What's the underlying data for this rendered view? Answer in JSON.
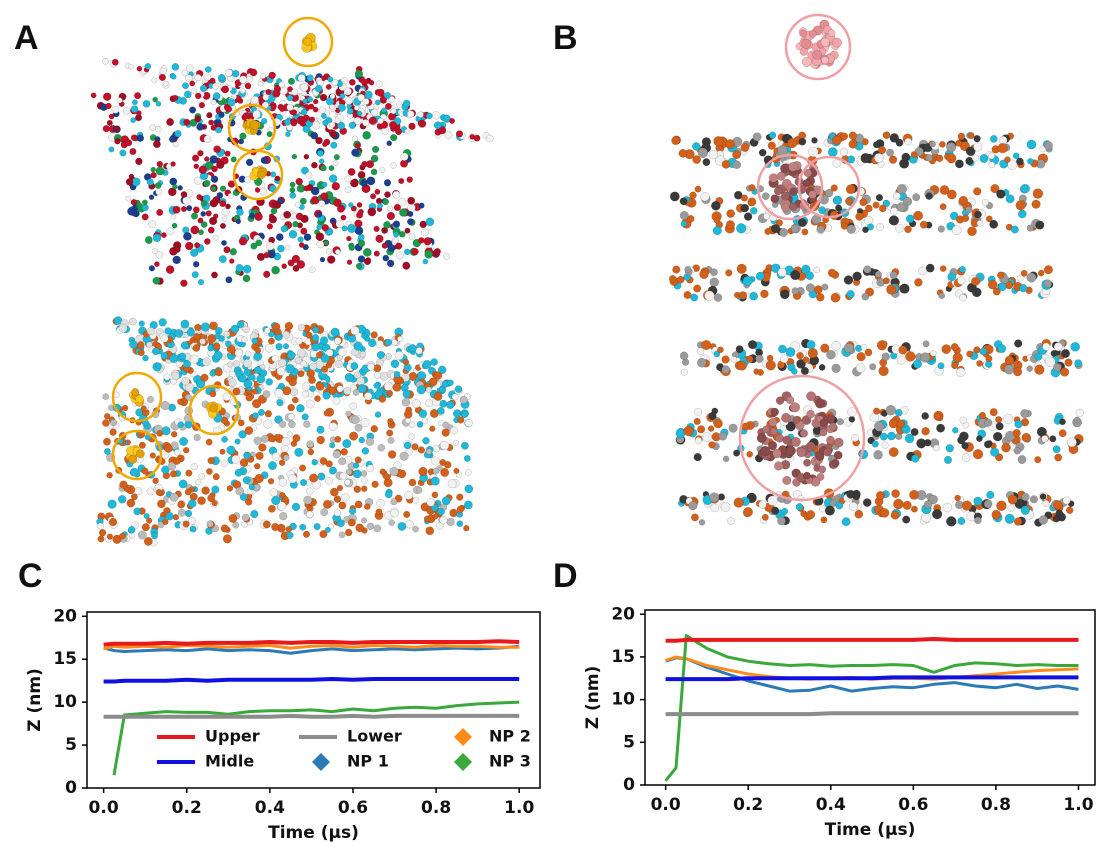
{
  "panel_labels": [
    "A",
    "B",
    "C",
    "D"
  ],
  "chart_data": [
    {
      "type": "line",
      "xlabel": "Time (µs)",
      "ylabel": "Z (nm)",
      "xlim": [
        -0.04,
        1.05
      ],
      "ylim": [
        0,
        20.5
      ],
      "xticks": [
        {
          "value": 0,
          "label": "0.0"
        },
        0.2,
        0.4,
        0.6,
        0.8,
        {
          "value": 1,
          "label": "1.0"
        }
      ],
      "yticks": [
        0,
        5,
        10,
        15,
        20
      ],
      "legend": true,
      "x": [
        0,
        0.025,
        0.05,
        0.1,
        0.15,
        0.2,
        0.25,
        0.3,
        0.35,
        0.4,
        0.45,
        0.5,
        0.55,
        0.6,
        0.65,
        0.7,
        0.75,
        0.8,
        0.85,
        0.9,
        0.95,
        1.0
      ],
      "series": [
        {
          "name": "Upper",
          "color": "#e8191c",
          "marker": "line",
          "values": [
            16.7,
            16.8,
            16.8,
            16.8,
            16.9,
            16.8,
            16.9,
            16.9,
            16.9,
            17.0,
            16.9,
            17.0,
            17.0,
            16.9,
            17.0,
            17.0,
            17.0,
            17.0,
            17.0,
            17.0,
            17.1,
            17.0
          ]
        },
        {
          "name": "Midle",
          "color": "#1010e0",
          "marker": "line",
          "values": [
            12.4,
            12.4,
            12.5,
            12.5,
            12.5,
            12.6,
            12.5,
            12.6,
            12.6,
            12.6,
            12.6,
            12.6,
            12.7,
            12.6,
            12.7,
            12.7,
            12.7,
            12.7,
            12.7,
            12.7,
            12.7,
            12.7
          ]
        },
        {
          "name": "Lower",
          "color": "#8c8c8c",
          "marker": "line",
          "values": [
            8.3,
            8.3,
            8.3,
            8.3,
            8.3,
            8.3,
            8.3,
            8.3,
            8.3,
            8.3,
            8.4,
            8.3,
            8.3,
            8.4,
            8.3,
            8.4,
            8.4,
            8.4,
            8.4,
            8.4,
            8.4,
            8.4
          ]
        },
        {
          "name": "NP 1",
          "color": "#2c7bb6",
          "marker": "diamond",
          "values": [
            16.3,
            16.0,
            15.9,
            16.0,
            16.1,
            16.0,
            16.2,
            16.0,
            16.1,
            16.0,
            15.7,
            16.0,
            16.2,
            16.0,
            16.1,
            16.2,
            16.1,
            16.2,
            16.3,
            16.2,
            16.3,
            16.5
          ]
        },
        {
          "name": "NP 2",
          "color": "#ff8c1a",
          "marker": "diamond",
          "values": [
            16.2,
            16.5,
            16.4,
            16.5,
            16.4,
            16.6,
            16.5,
            16.4,
            16.5,
            16.6,
            16.3,
            16.5,
            16.6,
            16.4,
            16.6,
            16.5,
            16.4,
            16.6,
            16.5,
            16.5,
            16.4,
            16.4
          ]
        },
        {
          "name": "NP 3",
          "color": "#3aa83a",
          "marker": "diamond",
          "values": [
            null,
            1.5,
            8.5,
            8.7,
            8.9,
            8.8,
            8.8,
            8.6,
            8.9,
            9.0,
            9.0,
            9.1,
            8.9,
            9.2,
            9.0,
            9.3,
            9.4,
            9.3,
            9.6,
            9.8,
            9.9,
            10.0
          ]
        }
      ]
    },
    {
      "type": "line",
      "xlabel": "Time (µs)",
      "ylabel": "Z (nm)",
      "xlim": [
        -0.05,
        1.04
      ],
      "ylim": [
        0,
        20.5
      ],
      "xticks": [
        {
          "value": 0,
          "label": "0.0"
        },
        0.2,
        0.4,
        0.6,
        0.8,
        {
          "value": 1,
          "label": "1.0"
        }
      ],
      "yticks": [
        0,
        5,
        10,
        15,
        20
      ],
      "legend": false,
      "x": [
        0,
        0.025,
        0.05,
        0.1,
        0.15,
        0.2,
        0.25,
        0.3,
        0.35,
        0.4,
        0.45,
        0.5,
        0.55,
        0.6,
        0.65,
        0.7,
        0.75,
        0.8,
        0.85,
        0.9,
        0.95,
        1.0
      ],
      "series": [
        {
          "name": "Upper",
          "color": "#e8191c",
          "marker": "line",
          "values": [
            16.9,
            16.9,
            17.0,
            17.0,
            17.0,
            17.0,
            17.0,
            17.0,
            17.0,
            17.0,
            17.0,
            17.0,
            17.0,
            17.0,
            17.1,
            17.0,
            17.0,
            17.0,
            17.0,
            17.0,
            17.0,
            17.0
          ]
        },
        {
          "name": "Midle",
          "color": "#1010e0",
          "marker": "line",
          "values": [
            12.4,
            12.4,
            12.4,
            12.4,
            12.4,
            12.5,
            12.5,
            12.5,
            12.5,
            12.5,
            12.5,
            12.5,
            12.6,
            12.6,
            12.6,
            12.6,
            12.6,
            12.6,
            12.6,
            12.6,
            12.6,
            12.6
          ]
        },
        {
          "name": "Lower",
          "color": "#8c8c8c",
          "marker": "line",
          "values": [
            8.3,
            8.3,
            8.3,
            8.3,
            8.3,
            8.3,
            8.3,
            8.3,
            8.3,
            8.4,
            8.4,
            8.4,
            8.4,
            8.4,
            8.4,
            8.4,
            8.4,
            8.4,
            8.4,
            8.4,
            8.4,
            8.4
          ]
        },
        {
          "name": "NP 1",
          "color": "#2c7bb6",
          "marker": "diamond",
          "values": [
            14.5,
            14.9,
            14.8,
            13.8,
            13.0,
            12.2,
            11.6,
            11.0,
            11.1,
            11.6,
            11.0,
            11.3,
            11.5,
            11.4,
            11.8,
            12.0,
            11.6,
            11.4,
            11.8,
            11.3,
            11.6,
            11.2
          ]
        },
        {
          "name": "NP 2",
          "color": "#ff8c1a",
          "marker": "diamond",
          "values": [
            14.6,
            15.0,
            14.8,
            14.0,
            13.5,
            13.0,
            12.7,
            12.5,
            12.4,
            12.5,
            12.6,
            12.4,
            12.5,
            12.5,
            12.4,
            12.6,
            12.8,
            13.0,
            13.2,
            13.4,
            13.5,
            13.6
          ]
        },
        {
          "name": "NP 3",
          "color": "#3aa83a",
          "marker": "diamond",
          "values": [
            0.5,
            2.0,
            17.5,
            16.0,
            15.0,
            14.5,
            14.2,
            14.0,
            14.1,
            13.9,
            14.0,
            14.0,
            14.1,
            14.0,
            13.2,
            14.0,
            14.3,
            14.2,
            14.0,
            14.1,
            14.0,
            14.0
          ]
        }
      ]
    }
  ]
}
